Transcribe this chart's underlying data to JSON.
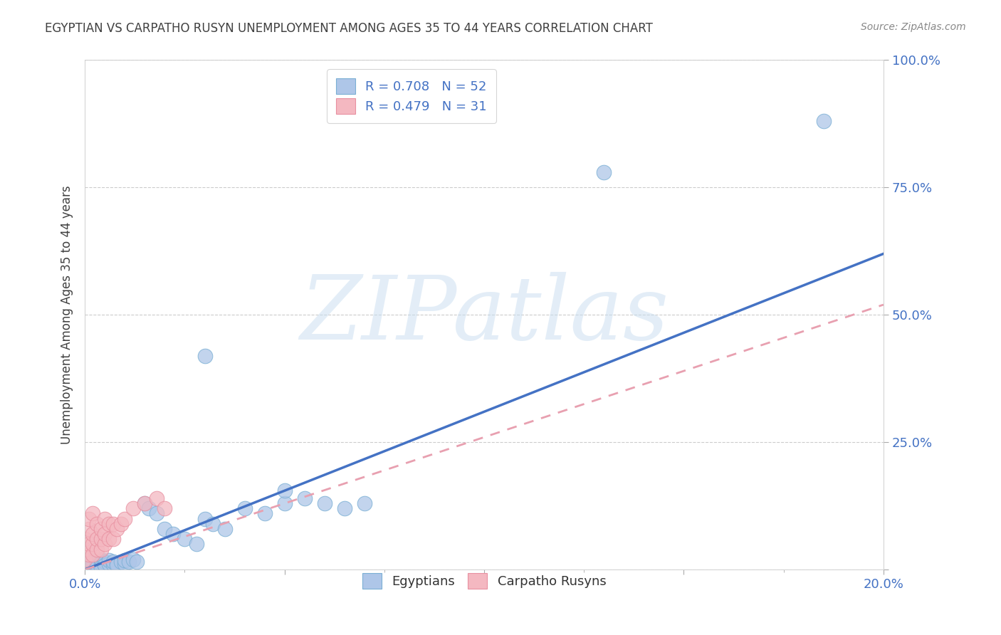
{
  "title": "EGYPTIAN VS CARPATHO RUSYN UNEMPLOYMENT AMONG AGES 35 TO 44 YEARS CORRELATION CHART",
  "source": "Source: ZipAtlas.com",
  "ylabel": "Unemployment Among Ages 35 to 44 years",
  "xlim": [
    0,
    0.2
  ],
  "ylim": [
    0,
    1.0
  ],
  "xtick_positions": [
    0.0,
    0.05,
    0.1,
    0.15,
    0.2
  ],
  "xticklabels": [
    "0.0%",
    "",
    "",
    "",
    "20.0%"
  ],
  "ytick_positions": [
    0.0,
    0.25,
    0.5,
    0.75,
    1.0
  ],
  "yticklabels_right": [
    "",
    "25.0%",
    "50.0%",
    "75.0%",
    "100.0%"
  ],
  "watermark": "ZIPatlas",
  "r_n_label1": "R = 0.708   N = 52",
  "r_n_label2": "R = 0.479   N = 31",
  "bottom_label1": "Egyptians",
  "bottom_label2": "Carpatho Rusyns",
  "egyptian_color": "#aec6e8",
  "egyptian_edge_color": "#7aafd4",
  "rusyn_color": "#f4b8c1",
  "rusyn_edge_color": "#e890a0",
  "egyptian_line_color": "#4472c4",
  "rusyn_line_color": "#e8a0b0",
  "blue_text_color": "#4472c4",
  "title_color": "#404040",
  "source_color": "#888888",
  "grid_color": "#cccccc",
  "tick_color": "#4472c4",
  "background_color": "#ffffff",
  "eg_line_x0": 0.0,
  "eg_line_y0": 0.0,
  "eg_line_x1": 0.2,
  "eg_line_y1": 0.62,
  "ru_line_x0": 0.0,
  "ru_line_y0": 0.0,
  "ru_line_x1": 0.2,
  "ru_line_y1": 0.52,
  "eg_scatter_x": [
    0.0,
    0.0,
    0.001,
    0.001,
    0.001,
    0.001,
    0.002,
    0.002,
    0.002,
    0.002,
    0.003,
    0.003,
    0.003,
    0.004,
    0.004,
    0.004,
    0.005,
    0.005,
    0.005,
    0.006,
    0.006,
    0.007,
    0.007,
    0.008,
    0.008,
    0.009,
    0.01,
    0.01,
    0.011,
    0.012,
    0.013,
    0.015,
    0.016,
    0.018,
    0.02,
    0.022,
    0.025,
    0.028,
    0.03,
    0.032,
    0.035,
    0.04,
    0.045,
    0.05,
    0.055,
    0.06,
    0.065,
    0.07,
    0.03,
    0.05,
    0.13,
    0.185
  ],
  "eg_scatter_y": [
    0.01,
    0.015,
    0.008,
    0.012,
    0.02,
    0.005,
    0.015,
    0.008,
    0.018,
    0.01,
    0.01,
    0.015,
    0.008,
    0.012,
    0.02,
    0.005,
    0.01,
    0.015,
    0.008,
    0.012,
    0.018,
    0.01,
    0.015,
    0.012,
    0.008,
    0.015,
    0.012,
    0.018,
    0.015,
    0.02,
    0.015,
    0.13,
    0.12,
    0.11,
    0.08,
    0.07,
    0.06,
    0.05,
    0.1,
    0.09,
    0.08,
    0.12,
    0.11,
    0.13,
    0.14,
    0.13,
    0.12,
    0.13,
    0.42,
    0.155,
    0.78,
    0.88
  ],
  "ru_scatter_x": [
    0.0,
    0.0,
    0.0,
    0.001,
    0.001,
    0.001,
    0.001,
    0.002,
    0.002,
    0.002,
    0.002,
    0.003,
    0.003,
    0.003,
    0.004,
    0.004,
    0.004,
    0.005,
    0.005,
    0.005,
    0.006,
    0.006,
    0.007,
    0.007,
    0.008,
    0.009,
    0.01,
    0.012,
    0.015,
    0.018,
    0.02
  ],
  "ru_scatter_y": [
    0.02,
    0.04,
    0.06,
    0.03,
    0.05,
    0.08,
    0.1,
    0.03,
    0.05,
    0.07,
    0.11,
    0.04,
    0.06,
    0.09,
    0.04,
    0.06,
    0.08,
    0.05,
    0.07,
    0.1,
    0.06,
    0.09,
    0.06,
    0.09,
    0.08,
    0.09,
    0.1,
    0.12,
    0.13,
    0.14,
    0.12
  ]
}
